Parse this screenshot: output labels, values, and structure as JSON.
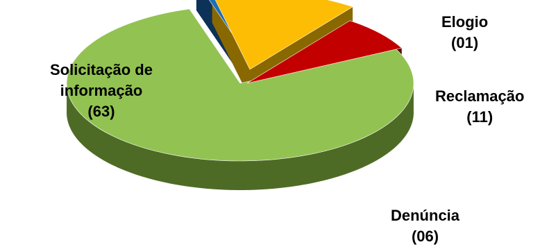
{
  "chart_data": {
    "type": "pie",
    "style": "3d-exploded",
    "title": "",
    "categories": [
      "Solicitação de informação",
      "Elogio",
      "Reclamação",
      "Denúncia"
    ],
    "values": [
      63,
      1,
      11,
      6
    ],
    "value_labels": [
      "(63)",
      "(01)",
      "(11)",
      "(06)"
    ],
    "colors": [
      "#92c352",
      "#1f6fb4",
      "#fcbd04",
      "#c30000"
    ],
    "side_colors": [
      "#4e6b26",
      "#0c3257",
      "#8a6800",
      "#5a0000"
    ],
    "legend": "none"
  },
  "labels": {
    "solicitacao": {
      "line1": "Solicitação de",
      "line2": "informação",
      "value": "(63)"
    },
    "elogio": {
      "name": "Elogio",
      "value": "(01)"
    },
    "reclamacao": {
      "name": "Reclamação",
      "value": "(11)"
    },
    "denuncia": {
      "name": "Denúncia",
      "value": "(06)"
    }
  }
}
